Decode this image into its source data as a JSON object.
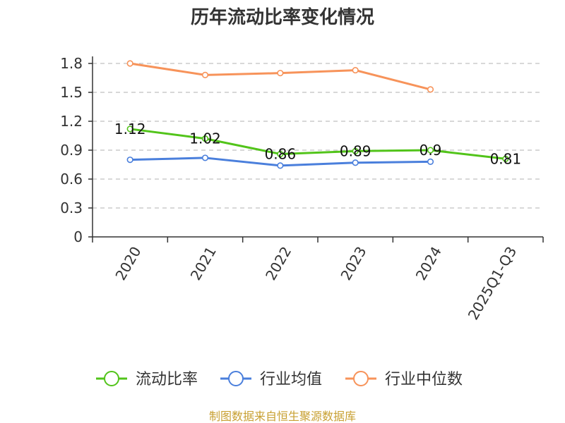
{
  "chart_data": {
    "type": "line",
    "title": "历年流动比率变化情况",
    "categories": [
      "2020",
      "2021",
      "2022",
      "2023",
      "2024",
      "2025Q1-Q3"
    ],
    "yticks": [
      "0",
      "0.3",
      "0.6",
      "0.9",
      "1.2",
      "1.5",
      "1.8"
    ],
    "ylim": [
      0,
      1.8
    ],
    "grid": true,
    "legend_position": "bottom",
    "series": [
      {
        "name": "流动比率",
        "color": "#52c41a",
        "values": [
          1.12,
          1.02,
          0.86,
          0.89,
          0.9,
          0.81
        ],
        "labels": [
          "1.12",
          "1.02",
          "0.86",
          "0.89",
          "0.9",
          "0.81"
        ]
      },
      {
        "name": "行业均值",
        "color": "#4a7fdc",
        "values": [
          0.8,
          0.82,
          0.74,
          0.77,
          0.78,
          null
        ]
      },
      {
        "name": "行业中位数",
        "color": "#f7935a",
        "values": [
          1.8,
          1.68,
          1.7,
          1.73,
          1.53,
          null
        ]
      }
    ]
  },
  "source_text": "制图数据来自恒生聚源数据库"
}
